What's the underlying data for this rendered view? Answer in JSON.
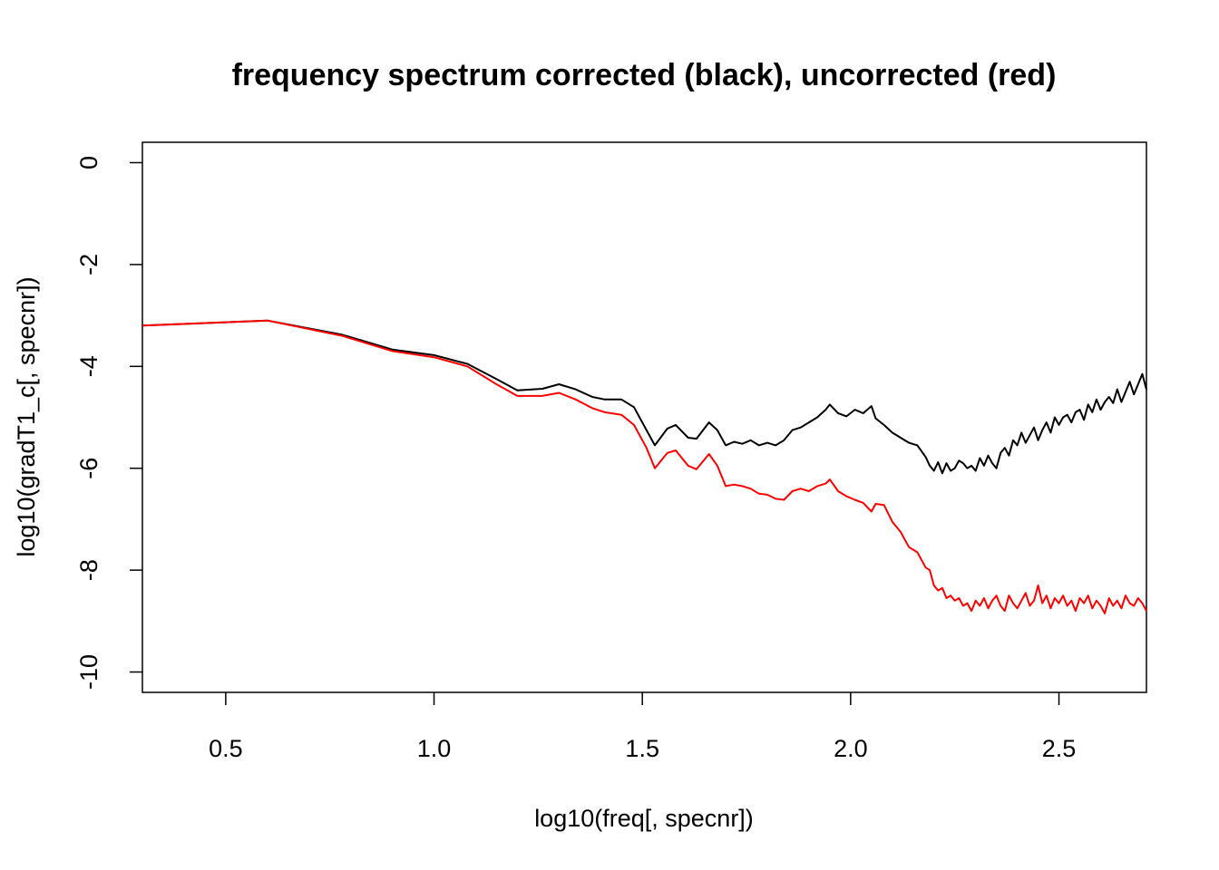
{
  "chart_data": {
    "type": "line",
    "title": "frequency spectrum corrected (black), uncorrected (red)",
    "xlabel": "log10(freq[, specnr])",
    "ylabel": "log10(gradT1_c[, specnr])",
    "xlim": [
      0.3,
      2.71
    ],
    "ylim": [
      -10.4,
      0.4
    ],
    "xticks": [
      0.5,
      1.0,
      1.5,
      2.0,
      2.5
    ],
    "xtick_labels": [
      "0.5",
      "1.0",
      "1.5",
      "2.0",
      "2.5"
    ],
    "yticks": [
      0,
      -2,
      -4,
      -6,
      -8,
      -10
    ],
    "ytick_labels": [
      "0",
      "-2",
      "-4",
      "-6",
      "-8",
      "-10"
    ],
    "grid": false,
    "series": [
      {
        "color": "#000000",
        "x": [
          0.3,
          0.6,
          0.78,
          0.9,
          1.0,
          1.08,
          1.15,
          1.2,
          1.26,
          1.3,
          1.34,
          1.38,
          1.41,
          1.45,
          1.48,
          1.51,
          1.53,
          1.56,
          1.58,
          1.61,
          1.63,
          1.66,
          1.68,
          1.7,
          1.72,
          1.74,
          1.76,
          1.78,
          1.8,
          1.82,
          1.84,
          1.86,
          1.88,
          1.9,
          1.92,
          1.94,
          1.95,
          1.97,
          1.99,
          2.01,
          2.03,
          2.05,
          2.06,
          2.08,
          2.1,
          2.12,
          2.14,
          2.16,
          2.18,
          2.19,
          2.2,
          2.21,
          2.22,
          2.23,
          2.24,
          2.25,
          2.26,
          2.27,
          2.28,
          2.29,
          2.3,
          2.31,
          2.32,
          2.33,
          2.34,
          2.35,
          2.36,
          2.37,
          2.38,
          2.39,
          2.4,
          2.41,
          2.42,
          2.43,
          2.44,
          2.45,
          2.46,
          2.47,
          2.48,
          2.49,
          2.5,
          2.51,
          2.52,
          2.53,
          2.54,
          2.55,
          2.56,
          2.57,
          2.58,
          2.59,
          2.6,
          2.61,
          2.62,
          2.63,
          2.64,
          2.65,
          2.66,
          2.67,
          2.68,
          2.69,
          2.7,
          2.71
        ],
        "y": [
          -3.2,
          -3.1,
          -3.38,
          -3.67,
          -3.78,
          -3.95,
          -4.25,
          -4.47,
          -4.44,
          -4.35,
          -4.45,
          -4.6,
          -4.65,
          -4.65,
          -4.8,
          -5.25,
          -5.55,
          -5.22,
          -5.15,
          -5.4,
          -5.42,
          -5.1,
          -5.25,
          -5.55,
          -5.48,
          -5.52,
          -5.45,
          -5.55,
          -5.5,
          -5.55,
          -5.45,
          -5.25,
          -5.2,
          -5.1,
          -5.0,
          -4.85,
          -4.75,
          -4.92,
          -4.98,
          -4.85,
          -4.92,
          -4.78,
          -5.02,
          -5.15,
          -5.3,
          -5.4,
          -5.5,
          -5.55,
          -5.78,
          -5.95,
          -6.05,
          -5.88,
          -6.1,
          -5.9,
          -6.05,
          -6.0,
          -5.85,
          -5.9,
          -6.0,
          -5.95,
          -6.05,
          -5.8,
          -5.95,
          -5.75,
          -5.9,
          -6.0,
          -5.7,
          -5.6,
          -5.75,
          -5.45,
          -5.55,
          -5.3,
          -5.5,
          -5.35,
          -5.2,
          -5.45,
          -5.25,
          -5.1,
          -5.3,
          -5.0,
          -5.15,
          -5.0,
          -4.95,
          -5.1,
          -4.9,
          -4.85,
          -5.05,
          -4.75,
          -4.9,
          -4.65,
          -4.85,
          -4.7,
          -4.6,
          -4.72,
          -4.45,
          -4.7,
          -4.5,
          -4.3,
          -4.55,
          -4.35,
          -4.15,
          -4.45
        ]
      },
      {
        "color": "#ff0000",
        "x": [
          0.3,
          0.6,
          0.78,
          0.9,
          1.0,
          1.08,
          1.15,
          1.2,
          1.26,
          1.3,
          1.34,
          1.38,
          1.41,
          1.45,
          1.48,
          1.51,
          1.53,
          1.56,
          1.58,
          1.61,
          1.63,
          1.66,
          1.68,
          1.7,
          1.72,
          1.74,
          1.76,
          1.78,
          1.8,
          1.82,
          1.84,
          1.86,
          1.88,
          1.9,
          1.92,
          1.94,
          1.95,
          1.97,
          1.99,
          2.01,
          2.03,
          2.05,
          2.06,
          2.08,
          2.1,
          2.12,
          2.14,
          2.16,
          2.18,
          2.19,
          2.2,
          2.21,
          2.22,
          2.23,
          2.24,
          2.25,
          2.26,
          2.27,
          2.28,
          2.29,
          2.3,
          2.31,
          2.32,
          2.33,
          2.34,
          2.35,
          2.36,
          2.37,
          2.38,
          2.39,
          2.4,
          2.41,
          2.42,
          2.43,
          2.44,
          2.45,
          2.46,
          2.47,
          2.48,
          2.49,
          2.5,
          2.51,
          2.52,
          2.53,
          2.54,
          2.55,
          2.56,
          2.57,
          2.58,
          2.59,
          2.6,
          2.61,
          2.62,
          2.63,
          2.64,
          2.65,
          2.66,
          2.67,
          2.68,
          2.69,
          2.7,
          2.71
        ],
        "y": [
          -3.2,
          -3.1,
          -3.4,
          -3.7,
          -3.82,
          -4.0,
          -4.35,
          -4.58,
          -4.58,
          -4.52,
          -4.65,
          -4.82,
          -4.9,
          -4.95,
          -5.15,
          -5.6,
          -6.0,
          -5.7,
          -5.65,
          -5.95,
          -6.02,
          -5.72,
          -5.95,
          -6.35,
          -6.32,
          -6.35,
          -6.4,
          -6.5,
          -6.52,
          -6.6,
          -6.62,
          -6.45,
          -6.4,
          -6.45,
          -6.35,
          -6.3,
          -6.22,
          -6.45,
          -6.55,
          -6.62,
          -6.68,
          -6.85,
          -6.7,
          -6.72,
          -7.05,
          -7.25,
          -7.55,
          -7.65,
          -7.95,
          -8.0,
          -8.3,
          -8.4,
          -8.35,
          -8.55,
          -8.5,
          -8.6,
          -8.55,
          -8.7,
          -8.65,
          -8.8,
          -8.6,
          -8.7,
          -8.55,
          -8.75,
          -8.6,
          -8.5,
          -8.7,
          -8.8,
          -8.5,
          -8.65,
          -8.75,
          -8.6,
          -8.45,
          -8.7,
          -8.6,
          -8.3,
          -8.65,
          -8.5,
          -8.75,
          -8.55,
          -8.65,
          -8.5,
          -8.7,
          -8.6,
          -8.8,
          -8.55,
          -8.65,
          -8.5,
          -8.75,
          -8.6,
          -8.7,
          -8.85,
          -8.55,
          -8.7,
          -8.6,
          -8.75,
          -8.5,
          -8.65,
          -8.7,
          -8.55,
          -8.65,
          -8.8
        ]
      }
    ]
  }
}
